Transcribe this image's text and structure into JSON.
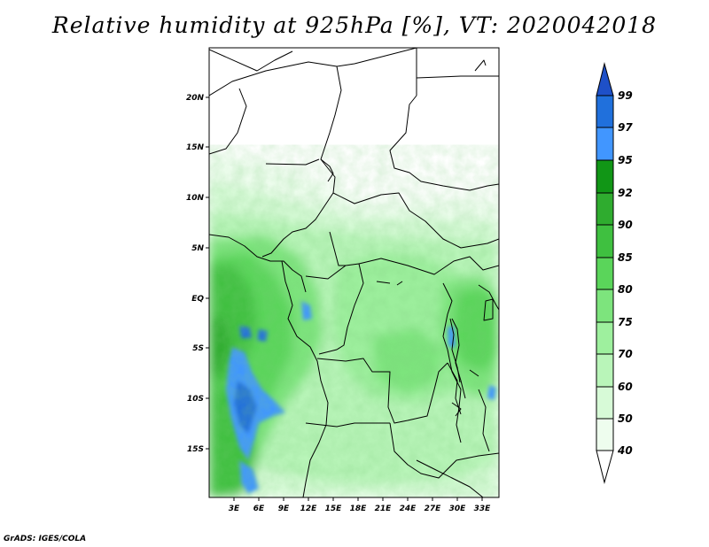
{
  "map": {
    "title": "Relative humidity at 925hPa [%], VT: 2020042018",
    "credit": "GrADS: IGES/COLA",
    "lat_labels": [
      "20N",
      "15N",
      "10N",
      "5N",
      "EQ",
      "5S",
      "10S",
      "15S"
    ],
    "lon_labels": [
      "3E",
      "6E",
      "9E",
      "12E",
      "15E",
      "18E",
      "21E",
      "24E",
      "27E",
      "30E",
      "33E"
    ],
    "colorbar": {
      "levels": [
        "99",
        "97",
        "95",
        "92",
        "90",
        "85",
        "80",
        "75",
        "70",
        "60",
        "50",
        "40"
      ],
      "colors": {
        "gt99": "#1e50c8",
        "c97_99": "#2070dc",
        "c95_97": "#4196ff",
        "c92_95": "#119616",
        "c90_92": "#2fac2f",
        "c85_90": "#3fc040",
        "c80_85": "#5ad55a",
        "c75_80": "#7de47d",
        "c70_75": "#9ef09e",
        "c60_70": "#b9f5b9",
        "c50_60": "#d7fad7",
        "c40_50": "#eefdee",
        "lt40": "#ffffff"
      }
    }
  }
}
